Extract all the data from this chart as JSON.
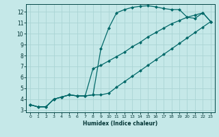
{
  "xlabel": "Humidex (Indice chaleur)",
  "ylabel": "",
  "bg_color": "#c5e8e8",
  "grid_color": "#aad4d4",
  "line_color": "#006868",
  "marker": "D",
  "marker_size": 2.0,
  "line_width": 0.9,
  "xlim": [
    -0.5,
    23.5
  ],
  "ylim": [
    2.8,
    12.7
  ],
  "xticks": [
    0,
    1,
    2,
    3,
    4,
    5,
    6,
    7,
    8,
    9,
    10,
    11,
    12,
    13,
    14,
    15,
    16,
    17,
    18,
    19,
    20,
    21,
    22,
    23
  ],
  "yticks": [
    3,
    4,
    5,
    6,
    7,
    8,
    9,
    10,
    11,
    12
  ],
  "series": [
    {
      "x": [
        0,
        1,
        2,
        3,
        4,
        5,
        6,
        7,
        8,
        9,
        10,
        11,
        12,
        13,
        14,
        15,
        16,
        17,
        18,
        19,
        20,
        21,
        22,
        23
      ],
      "y": [
        3.5,
        3.3,
        3.3,
        4.0,
        4.2,
        4.4,
        4.3,
        4.3,
        4.4,
        8.6,
        10.5,
        11.9,
        12.2,
        12.4,
        12.5,
        12.55,
        12.45,
        12.3,
        12.2,
        12.2,
        11.5,
        11.4,
        11.9,
        11.1
      ]
    },
    {
      "x": [
        0,
        1,
        2,
        3,
        4,
        5,
        6,
        7,
        8,
        9,
        10,
        11,
        12,
        13,
        14,
        15,
        16,
        17,
        18,
        19,
        20,
        21,
        22,
        23
      ],
      "y": [
        3.5,
        3.3,
        3.3,
        4.0,
        4.2,
        4.4,
        4.3,
        4.3,
        6.8,
        7.1,
        7.5,
        7.9,
        8.3,
        8.8,
        9.2,
        9.7,
        10.1,
        10.5,
        10.9,
        11.2,
        11.5,
        11.7,
        11.9,
        11.1
      ]
    },
    {
      "x": [
        0,
        1,
        2,
        3,
        4,
        5,
        6,
        7,
        8,
        9,
        10,
        11,
        12,
        13,
        14,
        15,
        16,
        17,
        18,
        19,
        20,
        21,
        22,
        23
      ],
      "y": [
        3.5,
        3.3,
        3.3,
        4.0,
        4.2,
        4.4,
        4.3,
        4.3,
        4.4,
        4.4,
        4.55,
        5.1,
        5.6,
        6.1,
        6.6,
        7.1,
        7.6,
        8.1,
        8.6,
        9.1,
        9.6,
        10.1,
        10.6,
        11.1
      ]
    }
  ]
}
